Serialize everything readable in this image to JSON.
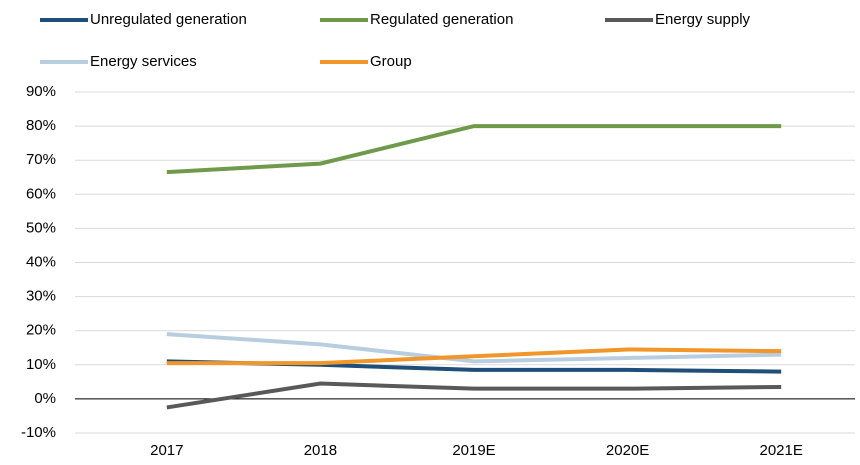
{
  "chart_data": {
    "type": "line",
    "categories": [
      "2017",
      "2018",
      "2019E",
      "2020E",
      "2021E"
    ],
    "series": [
      {
        "name": "Unregulated generation",
        "color": "#1f4e79",
        "values": [
          11,
          10,
          8.5,
          8.5,
          8
        ]
      },
      {
        "name": "Regulated generation",
        "color": "#6f9a4b",
        "values": [
          66.5,
          69,
          80,
          80,
          80
        ]
      },
      {
        "name": "Energy supply",
        "color": "#595959",
        "values": [
          -2.5,
          4.5,
          3,
          3,
          3.5
        ]
      },
      {
        "name": "Energy services",
        "color": "#b9cde0",
        "values": [
          19,
          16,
          11,
          12,
          13
        ]
      },
      {
        "name": "Group",
        "color": "#f0962a",
        "values": [
          10.5,
          10.5,
          12.5,
          14.5,
          14
        ]
      }
    ],
    "ylim": [
      -10,
      90
    ],
    "yticks": [
      {
        "value": -10,
        "label": "-10%"
      },
      {
        "value": 0,
        "label": "0%"
      },
      {
        "value": 10,
        "label": "10%"
      },
      {
        "value": 20,
        "label": "20%"
      },
      {
        "value": 30,
        "label": "30%"
      },
      {
        "value": 40,
        "label": "40%"
      },
      {
        "value": 50,
        "label": "50%"
      },
      {
        "value": 60,
        "label": "60%"
      },
      {
        "value": 70,
        "label": "70%"
      },
      {
        "value": 80,
        "label": "80%"
      },
      {
        "value": 90,
        "label": "90%"
      }
    ],
    "grid": true
  }
}
